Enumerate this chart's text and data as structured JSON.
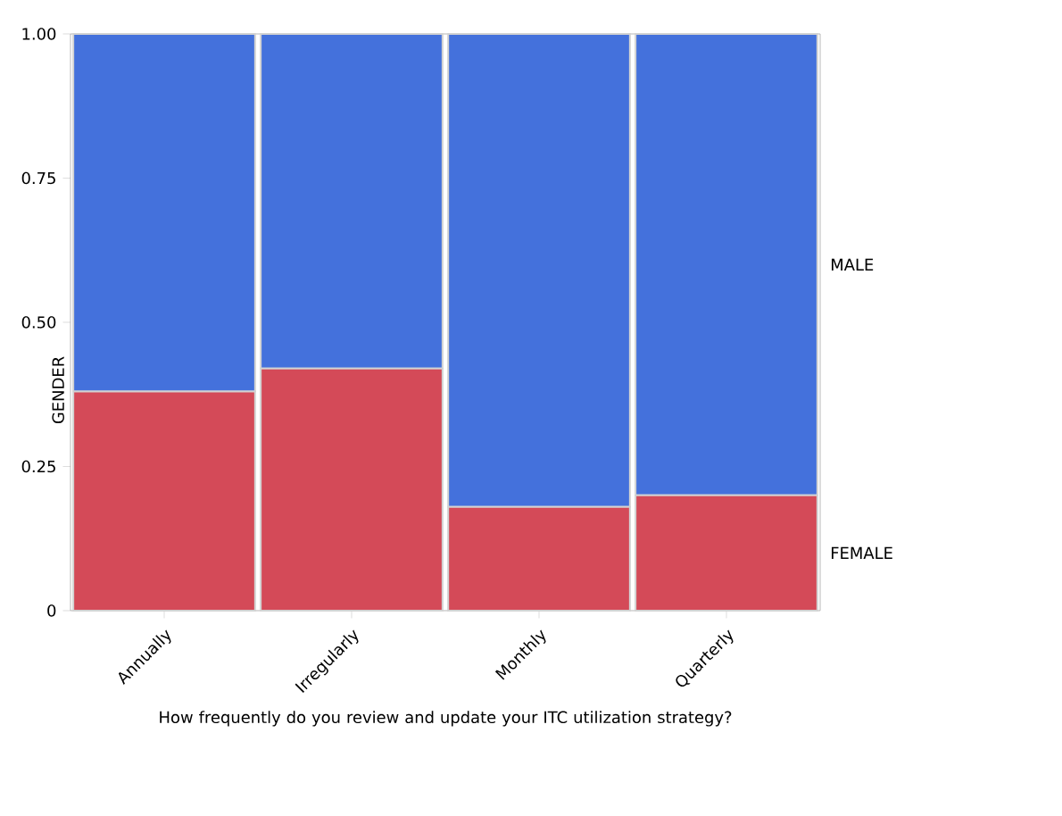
{
  "chart_data": {
    "type": "bar",
    "stacked": true,
    "xlabel": "How frequently do you review and update your ITC utilization strategy?",
    "ylabel": "GENDER",
    "categories": [
      "Annually",
      "Irregularly",
      "Monthly",
      "Quarterly"
    ],
    "series": [
      {
        "name": "FEMALE",
        "color": "#d44a58",
        "values": [
          0.38,
          0.42,
          0.18,
          0.2
        ]
      },
      {
        "name": "MALE",
        "color": "#4471dc",
        "values": [
          0.62,
          0.58,
          0.82,
          0.8
        ]
      }
    ],
    "ylim": [
      0,
      1
    ],
    "yticks": [
      0,
      0.25,
      {
        "value": 0.5,
        "label": "0.50"
      },
      0.75,
      {
        "value": 1,
        "label": "1.00"
      }
    ]
  }
}
